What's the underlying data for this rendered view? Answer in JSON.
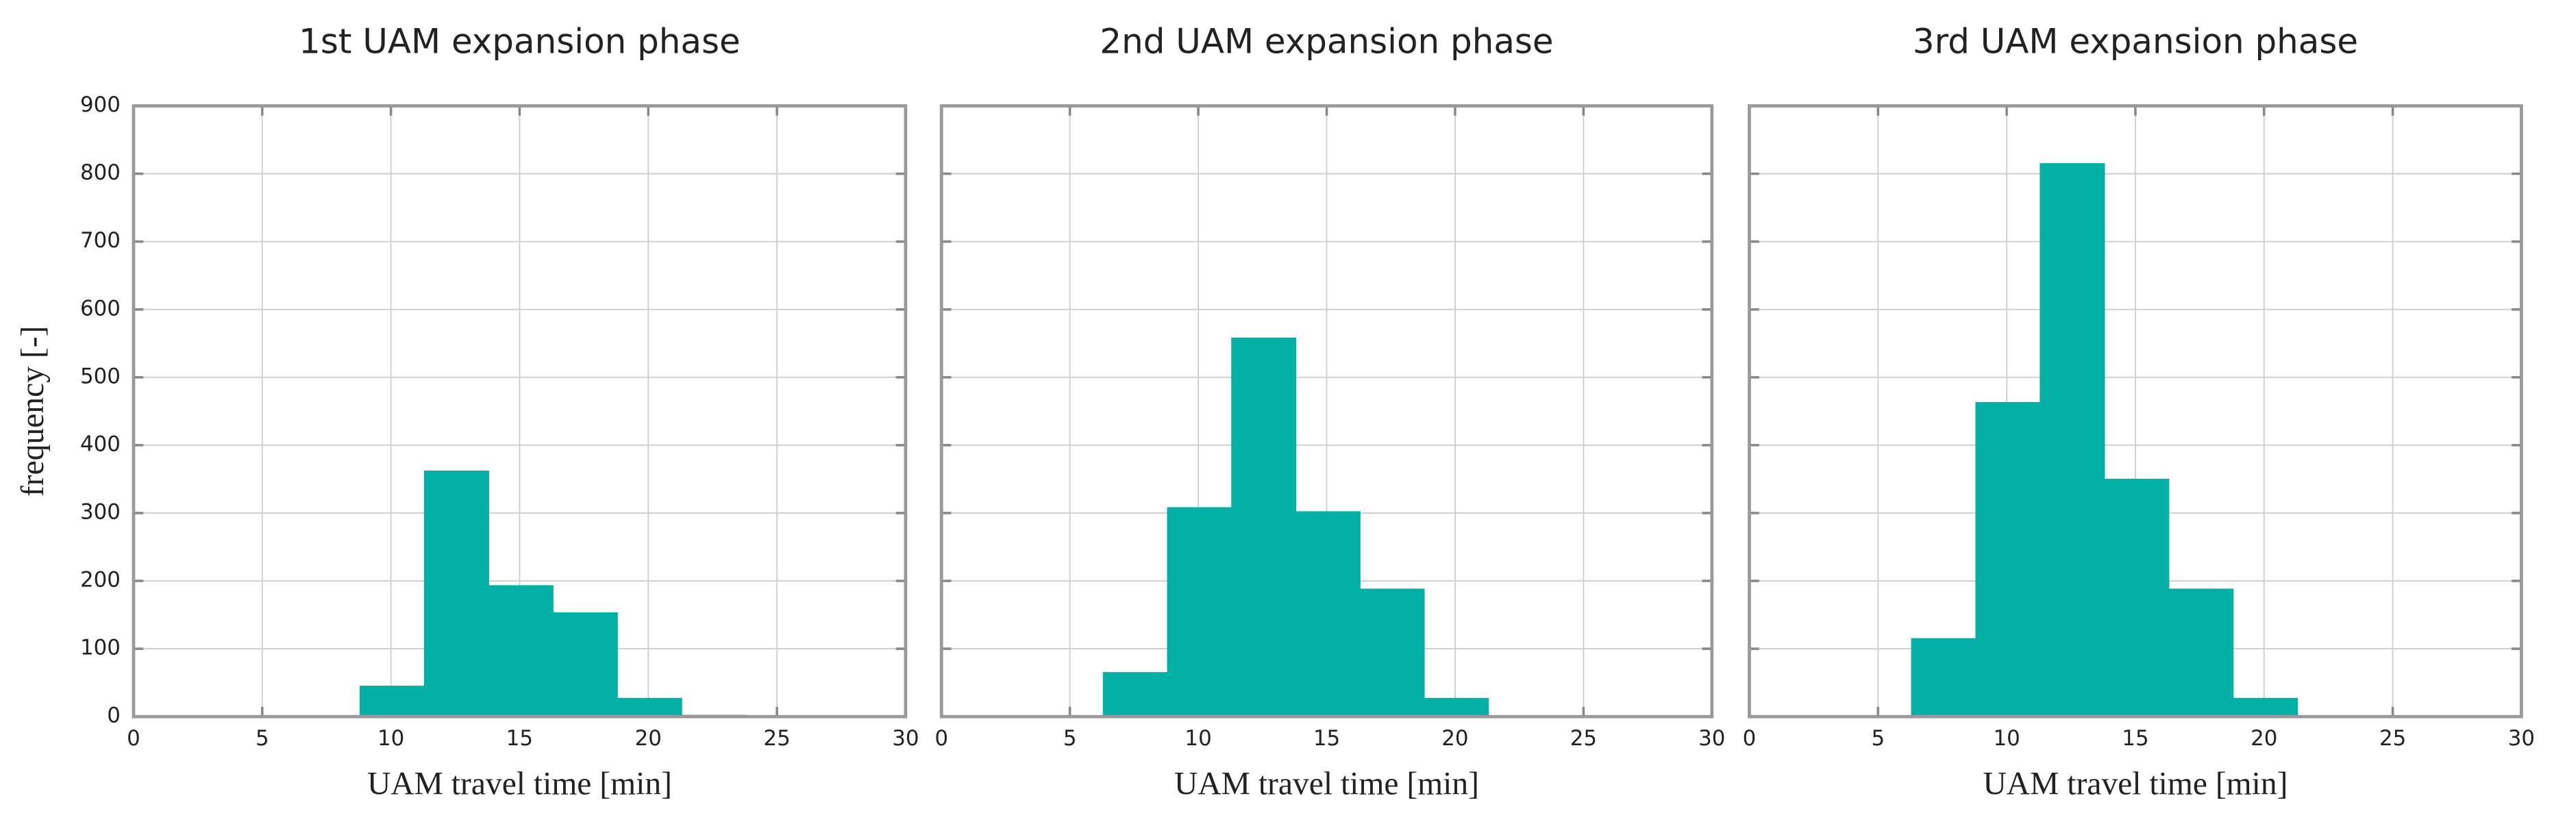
{
  "chart_data": [
    {
      "type": "histogram",
      "title": "1st UAM expansion phase",
      "xlabel": "UAM travel time [min]",
      "ylabel": "frequency [-]",
      "bins": [
        6.3,
        8.8,
        11.3,
        13.8,
        16.3,
        18.8,
        21.3,
        23.8
      ],
      "values": [
        0,
        45,
        362,
        193,
        153,
        27,
        2
      ],
      "color": "#02b0a6",
      "xlim": [
        0,
        30
      ],
      "xticks": [
        0,
        5,
        10,
        15,
        20,
        25,
        30
      ],
      "ylim": [
        0,
        900
      ],
      "yticks": [
        0,
        100,
        200,
        300,
        400,
        500,
        600,
        700,
        800,
        900
      ],
      "grid": true
    },
    {
      "type": "histogram",
      "title": "2nd UAM expansion phase",
      "xlabel": "UAM travel time [min]",
      "bins": [
        6.3,
        8.8,
        11.3,
        13.8,
        16.3,
        18.8,
        21.3,
        23.8
      ],
      "values": [
        65,
        308,
        558,
        302,
        188,
        27,
        0
      ],
      "color": "#02b0a6",
      "xlim": [
        0,
        30
      ],
      "xticks": [
        0,
        5,
        10,
        15,
        20,
        25,
        30
      ],
      "ylim": [
        0,
        900
      ],
      "yticks": [
        0,
        100,
        200,
        300,
        400,
        500,
        600,
        700,
        800,
        900
      ],
      "grid": true
    },
    {
      "type": "histogram",
      "title": "3rd UAM expansion phase",
      "xlabel": "UAM travel time [min]",
      "bins": [
        6.3,
        8.8,
        11.3,
        13.8,
        16.3,
        18.8,
        21.3,
        23.8
      ],
      "values": [
        115,
        463,
        815,
        350,
        188,
        27,
        0
      ],
      "color": "#02b0a6",
      "xlim": [
        0,
        30
      ],
      "xticks": [
        0,
        5,
        10,
        15,
        20,
        25,
        30
      ],
      "ylim": [
        0,
        900
      ],
      "yticks": [
        0,
        100,
        200,
        300,
        400,
        500,
        600,
        700,
        800,
        900
      ],
      "grid": true
    }
  ]
}
